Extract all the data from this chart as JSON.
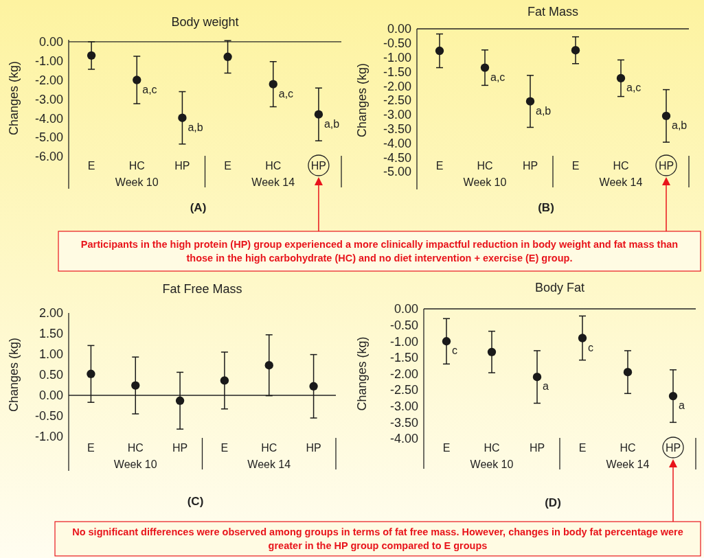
{
  "chart_data": [
    {
      "type": "scatter",
      "title": "Body weight",
      "ylabel": "Changes (kg)",
      "categories": [
        "E",
        "HC",
        "HP",
        "E",
        "HC",
        "HP"
      ],
      "color": "#1a1a1a",
      "marker": "circle",
      "values": [
        -0.72,
        -2.0,
        -3.98,
        -0.79,
        -2.22,
        -3.8
      ],
      "errors": [
        0.72,
        1.24,
        1.37,
        0.85,
        1.18,
        1.38
      ],
      "value_labels": [
        null,
        "a,c",
        "a,b",
        null,
        "a,c",
        "a,b"
      ],
      "ylim": [
        -6,
        0.1
      ],
      "yticks": [
        {
          "value": 0,
          "label": "0.00"
        },
        {
          "value": -1,
          "label": "-1.00"
        },
        {
          "value": -2,
          "label": "-2.00"
        },
        {
          "value": -3,
          "label": "-3.00"
        },
        {
          "value": -4,
          "label": "-4.00"
        },
        {
          "value": -5,
          "label": "-5.00"
        },
        {
          "value": -6,
          "label": "-6.00"
        }
      ],
      "annotations": [
        "Week 10",
        "Week 14",
        "(A)",
        "Participants in the high protein (HP) group experienced a more clinically impactful reduction in body weight and fat mass than those in the high carbohydrate (HC) and no diet intervention + exercise (E) group."
      ]
    },
    {
      "type": "scatter",
      "title": "Fat Mass",
      "ylabel": "Changes (kg)",
      "categories": [
        "E",
        "HC",
        "HP",
        "E",
        "HC",
        "HP"
      ],
      "color": "#1a1a1a",
      "marker": "circle",
      "values": [
        -0.77,
        -1.36,
        -2.54,
        -0.75,
        -1.73,
        -3.05
      ],
      "errors": [
        0.59,
        0.62,
        0.91,
        0.47,
        0.64,
        0.92
      ],
      "value_labels": [
        null,
        "a,c",
        "a,b",
        null,
        "a,c",
        "a,b"
      ],
      "ylim": [
        -5,
        0
      ],
      "yticks": [
        {
          "value": 0,
          "label": "0.00"
        },
        {
          "value": -0.5,
          "label": "-0.50"
        },
        {
          "value": -1,
          "label": "-1.00"
        },
        {
          "value": -1.5,
          "label": "-1.50"
        },
        {
          "value": -2,
          "label": "-2.00"
        },
        {
          "value": -2.5,
          "label": "-2.50"
        },
        {
          "value": -3,
          "label": "-3.00"
        },
        {
          "value": -3.5,
          "label": "-3.50"
        },
        {
          "value": -4,
          "label": "-4.00"
        },
        {
          "value": -4.5,
          "label": "-4.50"
        },
        {
          "value": -5,
          "label": "-5.00"
        }
      ],
      "annotations": [
        "Week 10",
        "Week 14",
        "(B)"
      ]
    },
    {
      "type": "scatter",
      "title": "Fat Free Mass",
      "ylabel": "Changes (kg)",
      "categories": [
        "E",
        "HC",
        "HP",
        "E",
        "HC",
        "HP"
      ],
      "color": "#1a1a1a",
      "marker": "circle",
      "values": [
        0.52,
        0.24,
        -0.13,
        0.36,
        0.73,
        0.22
      ],
      "errors": [
        0.69,
        0.69,
        0.69,
        0.69,
        0.74,
        0.77
      ],
      "ylim": [
        -1,
        2
      ],
      "yticks": [
        {
          "value": 2,
          "label": "2.00"
        },
        {
          "value": 1.5,
          "label": "1.50"
        },
        {
          "value": 1,
          "label": "1.00"
        },
        {
          "value": 0.5,
          "label": "0.50"
        },
        {
          "value": 0,
          "label": "0.00"
        },
        {
          "value": -0.5,
          "label": "-0.50"
        },
        {
          "value": -1,
          "label": "-1.00"
        }
      ],
      "annotations": [
        "Week 10",
        "Week 14",
        "(C)",
        "No significant differences were observed among groups in terms of fat free mass. However, changes in body fat percentage were greater in the HP group compared to E groups"
      ]
    },
    {
      "type": "scatter",
      "title": "Body Fat",
      "ylabel": "Changes (kg)",
      "categories": [
        "E",
        "HC",
        "HP",
        "E",
        "HC",
        "HP"
      ],
      "color": "#1a1a1a",
      "marker": "circle",
      "values": [
        -1.0,
        -1.33,
        -2.1,
        -0.9,
        -1.95,
        -2.69
      ],
      "errors": [
        0.7,
        0.64,
        0.81,
        0.68,
        0.66,
        0.81
      ],
      "value_labels": [
        "c",
        null,
        "a",
        "c",
        null,
        "a"
      ],
      "ylim": [
        -4,
        0
      ],
      "yticks": [
        {
          "value": 0,
          "label": "0.00"
        },
        {
          "value": -0.5,
          "label": "-0.50"
        },
        {
          "value": -1,
          "label": "-1.00"
        },
        {
          "value": -1.5,
          "label": "-1.50"
        },
        {
          "value": -2,
          "label": "-2.00"
        },
        {
          "value": -2.5,
          "label": "-2.50"
        },
        {
          "value": -3,
          "label": "-3.00"
        },
        {
          "value": -3.5,
          "label": "-3.50"
        },
        {
          "value": -4,
          "label": "-4.00"
        }
      ],
      "annotations": [
        "Week 10",
        "Week 14",
        "(D)"
      ]
    }
  ]
}
